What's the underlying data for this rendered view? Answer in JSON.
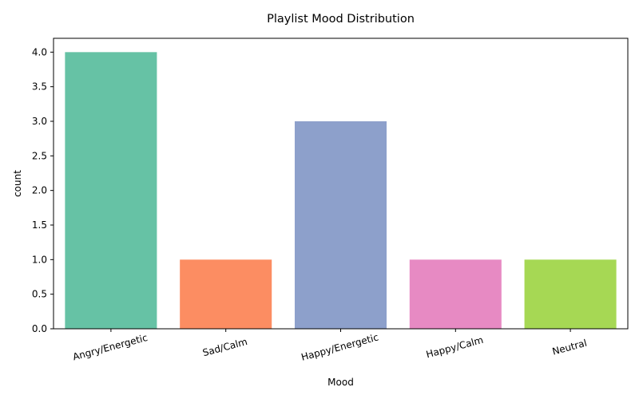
{
  "chart_data": {
    "type": "bar",
    "title": "Playlist Mood Distribution",
    "xlabel": "Mood",
    "ylabel": "count",
    "categories": [
      "Angry/Energetic",
      "Sad/Calm",
      "Happy/Energetic",
      "Happy/Calm",
      "Neutral"
    ],
    "values": [
      4,
      1,
      3,
      1,
      1
    ],
    "colors": [
      "#66c2a5",
      "#fc8d62",
      "#8da0cb",
      "#e78ac3",
      "#a6d854"
    ],
    "ylim": [
      0,
      4.2
    ],
    "yticks": [
      "0.0",
      "0.5",
      "1.0",
      "1.5",
      "2.0",
      "2.5",
      "3.0",
      "3.5",
      "4.0"
    ],
    "grid": false,
    "legend": "none"
  }
}
